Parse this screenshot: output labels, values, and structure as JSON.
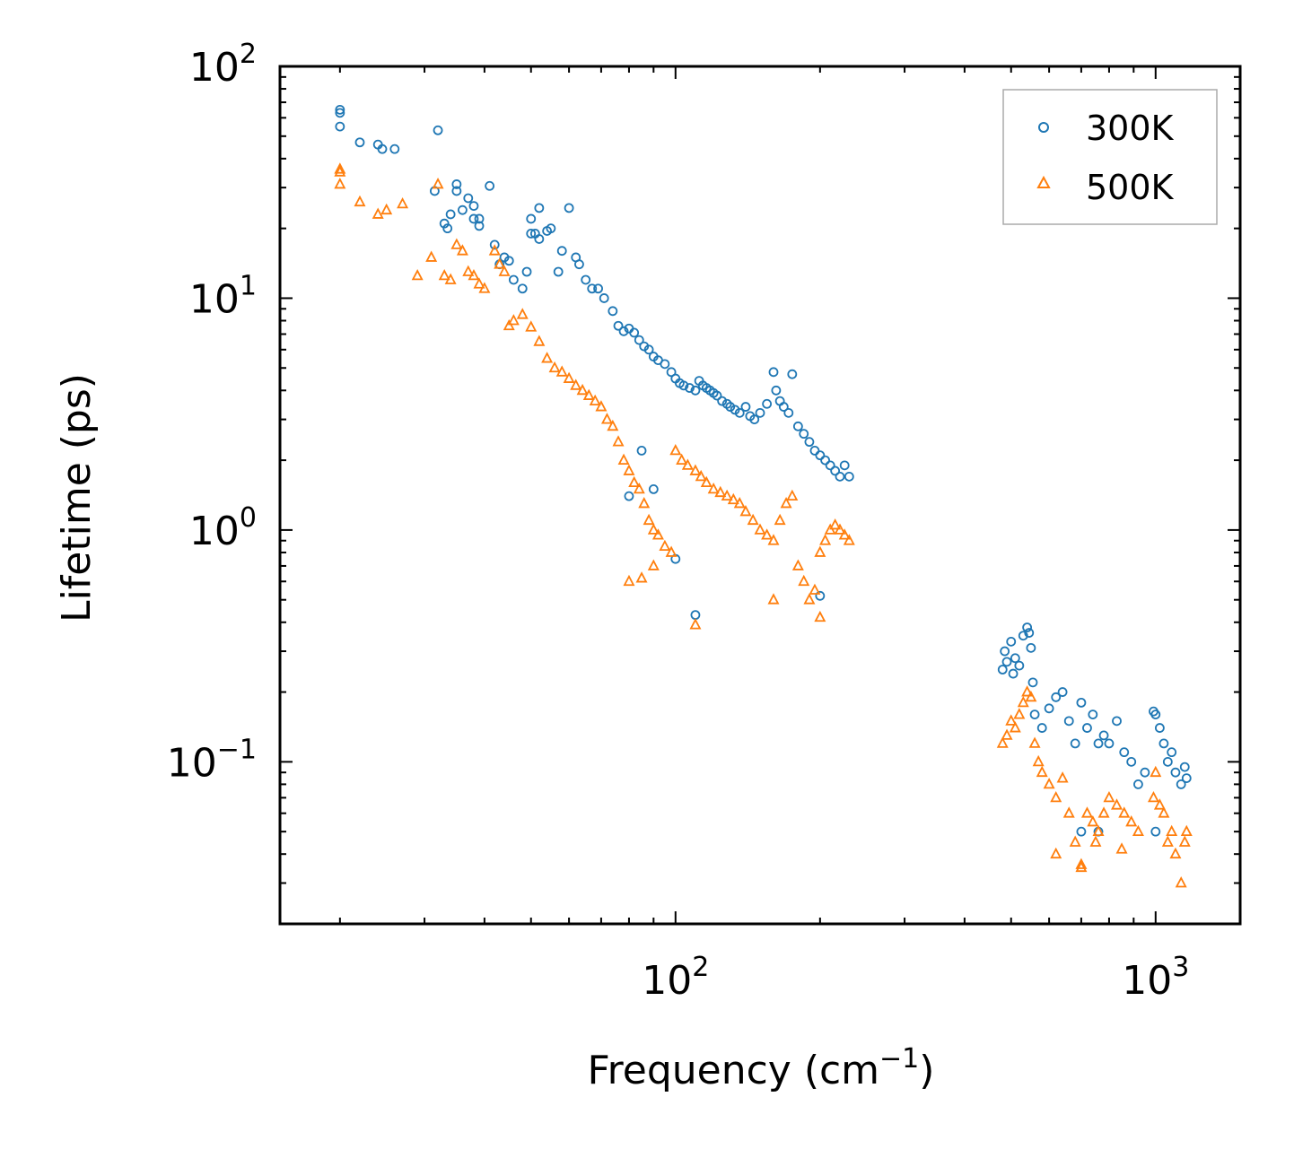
{
  "chart_data": {
    "type": "scatter",
    "xscale": "log",
    "yscale": "log",
    "xlim": [
      15,
      1500
    ],
    "ylim": [
      0.02,
      100
    ],
    "xlabel": "Frequency (cm",
    "xlabel_sup": "−1",
    "xlabel_tail": ")",
    "ylabel": "Lifetime (ps)",
    "x_ticks": [
      {
        "value": 100,
        "base": "10",
        "exp": "2"
      },
      {
        "value": 1000,
        "base": "10",
        "exp": "3"
      }
    ],
    "y_ticks": [
      {
        "value": 0.1,
        "base": "10",
        "exp": "−1"
      },
      {
        "value": 1,
        "base": "10",
        "exp": "0"
      },
      {
        "value": 10,
        "base": "10",
        "exp": "1"
      },
      {
        "value": 100,
        "base": "10",
        "exp": "2"
      }
    ],
    "legend": {
      "placement": "top-right"
    },
    "series": [
      {
        "name": "300K",
        "marker": "circle",
        "color": "#1f77b4",
        "points": [
          [
            20,
            65
          ],
          [
            20,
            63
          ],
          [
            20,
            55
          ],
          [
            22,
            47
          ],
          [
            24,
            46
          ],
          [
            24.5,
            44
          ],
          [
            26,
            44
          ],
          [
            32,
            53
          ],
          [
            31.5,
            29
          ],
          [
            33,
            21
          ],
          [
            33.5,
            20
          ],
          [
            34,
            23
          ],
          [
            35,
            31
          ],
          [
            35,
            29
          ],
          [
            36,
            24
          ],
          [
            37,
            27
          ],
          [
            38,
            25
          ],
          [
            38,
            22
          ],
          [
            39,
            22
          ],
          [
            39,
            20.5
          ],
          [
            41,
            30.5
          ],
          [
            42,
            17
          ],
          [
            43,
            14
          ],
          [
            44,
            15
          ],
          [
            45,
            14.5
          ],
          [
            46,
            12
          ],
          [
            48,
            11
          ],
          [
            49,
            13
          ],
          [
            50,
            22
          ],
          [
            50,
            19
          ],
          [
            51,
            19
          ],
          [
            52,
            18
          ],
          [
            52,
            24.5
          ],
          [
            54,
            19.5
          ],
          [
            55,
            20
          ],
          [
            57,
            13
          ],
          [
            58,
            16
          ],
          [
            60,
            24.5
          ],
          [
            62,
            15
          ],
          [
            63,
            14
          ],
          [
            65,
            12
          ],
          [
            67,
            11
          ],
          [
            69,
            11
          ],
          [
            71,
            10
          ],
          [
            74,
            8.8
          ],
          [
            76,
            7.6
          ],
          [
            78,
            7.2
          ],
          [
            80,
            7.4
          ],
          [
            82,
            7.1
          ],
          [
            84,
            6.6
          ],
          [
            86,
            6.2
          ],
          [
            88,
            6
          ],
          [
            90,
            5.6
          ],
          [
            92,
            5.4
          ],
          [
            95,
            5.2
          ],
          [
            98,
            4.8
          ],
          [
            100,
            4.5
          ],
          [
            102,
            4.3
          ],
          [
            104,
            4.2
          ],
          [
            107,
            4.1
          ],
          [
            110,
            4
          ],
          [
            112,
            4.4
          ],
          [
            114,
            4.2
          ],
          [
            116,
            4.1
          ],
          [
            118,
            4.0
          ],
          [
            120,
            3.9
          ],
          [
            122,
            3.8
          ],
          [
            125,
            3.6
          ],
          [
            128,
            3.5
          ],
          [
            130,
            3.4
          ],
          [
            133,
            3.3
          ],
          [
            136,
            3.2
          ],
          [
            140,
            3.4
          ],
          [
            143,
            3.1
          ],
          [
            146,
            3.0
          ],
          [
            150,
            3.2
          ],
          [
            155,
            3.5
          ],
          [
            160,
            4.8
          ],
          [
            162,
            4.0
          ],
          [
            165,
            3.6
          ],
          [
            168,
            3.4
          ],
          [
            172,
            3.2
          ],
          [
            175,
            4.7
          ],
          [
            180,
            2.8
          ],
          [
            185,
            2.6
          ],
          [
            190,
            2.4
          ],
          [
            195,
            2.2
          ],
          [
            200,
            2.1
          ],
          [
            205,
            2.0
          ],
          [
            210,
            1.9
          ],
          [
            215,
            1.8
          ],
          [
            220,
            1.7
          ],
          [
            225,
            1.9
          ],
          [
            230,
            1.7
          ],
          [
            100,
            0.75
          ],
          [
            110,
            0.43
          ],
          [
            200,
            0.52
          ],
          [
            80,
            1.4
          ],
          [
            90,
            1.5
          ],
          [
            85,
            2.2
          ],
          [
            480,
            0.25
          ],
          [
            485,
            0.3
          ],
          [
            490,
            0.27
          ],
          [
            500,
            0.33
          ],
          [
            505,
            0.24
          ],
          [
            510,
            0.28
          ],
          [
            520,
            0.26
          ],
          [
            530,
            0.35
          ],
          [
            540,
            0.38
          ],
          [
            545,
            0.36
          ],
          [
            550,
            0.31
          ],
          [
            555,
            0.22
          ],
          [
            560,
            0.16
          ],
          [
            580,
            0.14
          ],
          [
            600,
            0.17
          ],
          [
            620,
            0.19
          ],
          [
            640,
            0.2
          ],
          [
            660,
            0.15
          ],
          [
            680,
            0.12
          ],
          [
            700,
            0.18
          ],
          [
            720,
            0.14
          ],
          [
            740,
            0.16
          ],
          [
            760,
            0.12
          ],
          [
            780,
            0.13
          ],
          [
            800,
            0.12
          ],
          [
            830,
            0.15
          ],
          [
            860,
            0.11
          ],
          [
            890,
            0.1
          ],
          [
            920,
            0.08
          ],
          [
            950,
            0.09
          ],
          [
            990,
            0.165
          ],
          [
            1000,
            0.16
          ],
          [
            1020,
            0.14
          ],
          [
            1040,
            0.12
          ],
          [
            1060,
            0.1
          ],
          [
            1080,
            0.11
          ],
          [
            1100,
            0.09
          ],
          [
            1130,
            0.08
          ],
          [
            1150,
            0.095
          ],
          [
            1160,
            0.085
          ],
          [
            700,
            0.05
          ],
          [
            760,
            0.05
          ],
          [
            1000,
            0.05
          ]
        ]
      },
      {
        "name": "500K",
        "marker": "triangle",
        "color": "#ff7f0e",
        "points": [
          [
            20,
            36
          ],
          [
            20,
            35
          ],
          [
            20,
            31
          ],
          [
            22,
            26
          ],
          [
            24,
            23
          ],
          [
            25,
            24
          ],
          [
            27,
            25.5
          ],
          [
            29,
            12.5
          ],
          [
            31,
            15
          ],
          [
            32,
            31
          ],
          [
            33,
            12.5
          ],
          [
            34,
            12
          ],
          [
            35,
            17
          ],
          [
            36,
            16
          ],
          [
            37,
            13
          ],
          [
            38,
            12.5
          ],
          [
            39,
            11.5
          ],
          [
            40,
            11
          ],
          [
            42,
            16
          ],
          [
            43,
            14
          ],
          [
            44,
            13
          ],
          [
            45,
            7.6
          ],
          [
            46,
            8
          ],
          [
            48,
            8.5
          ],
          [
            50,
            7.5
          ],
          [
            52,
            6.5
          ],
          [
            54,
            5.5
          ],
          [
            56,
            5.0
          ],
          [
            58,
            4.8
          ],
          [
            60,
            4.5
          ],
          [
            62,
            4.2
          ],
          [
            64,
            4.0
          ],
          [
            66,
            3.8
          ],
          [
            68,
            3.6
          ],
          [
            70,
            3.4
          ],
          [
            72,
            3.0
          ],
          [
            74,
            2.8
          ],
          [
            76,
            2.4
          ],
          [
            78,
            2.0
          ],
          [
            80,
            1.8
          ],
          [
            82,
            1.6
          ],
          [
            84,
            1.5
          ],
          [
            86,
            1.3
          ],
          [
            88,
            1.1
          ],
          [
            90,
            1.0
          ],
          [
            92,
            0.95
          ],
          [
            95,
            0.85
          ],
          [
            98,
            0.8
          ],
          [
            100,
            2.2
          ],
          [
            103,
            2.0
          ],
          [
            106,
            1.9
          ],
          [
            110,
            1.8
          ],
          [
            113,
            1.7
          ],
          [
            116,
            1.6
          ],
          [
            120,
            1.5
          ],
          [
            124,
            1.45
          ],
          [
            128,
            1.4
          ],
          [
            132,
            1.35
          ],
          [
            136,
            1.3
          ],
          [
            140,
            1.2
          ],
          [
            145,
            1.1
          ],
          [
            150,
            1.0
          ],
          [
            155,
            0.95
          ],
          [
            160,
            0.9
          ],
          [
            165,
            1.1
          ],
          [
            170,
            1.3
          ],
          [
            175,
            1.4
          ],
          [
            180,
            0.7
          ],
          [
            185,
            0.6
          ],
          [
            190,
            0.5
          ],
          [
            195,
            0.55
          ],
          [
            200,
            0.8
          ],
          [
            205,
            0.9
          ],
          [
            210,
            1.0
          ],
          [
            215,
            1.05
          ],
          [
            220,
            1.0
          ],
          [
            225,
            0.95
          ],
          [
            230,
            0.9
          ],
          [
            80,
            0.6
          ],
          [
            85,
            0.62
          ],
          [
            90,
            0.7
          ],
          [
            110,
            0.39
          ],
          [
            200,
            0.42
          ],
          [
            160,
            0.5
          ],
          [
            480,
            0.12
          ],
          [
            490,
            0.13
          ],
          [
            500,
            0.15
          ],
          [
            510,
            0.14
          ],
          [
            520,
            0.16
          ],
          [
            530,
            0.18
          ],
          [
            540,
            0.2
          ],
          [
            550,
            0.19
          ],
          [
            560,
            0.12
          ],
          [
            570,
            0.1
          ],
          [
            580,
            0.09
          ],
          [
            600,
            0.08
          ],
          [
            620,
            0.07
          ],
          [
            640,
            0.085
          ],
          [
            660,
            0.06
          ],
          [
            680,
            0.045
          ],
          [
            700,
            0.035
          ],
          [
            720,
            0.06
          ],
          [
            740,
            0.055
          ],
          [
            760,
            0.05
          ],
          [
            780,
            0.06
          ],
          [
            800,
            0.07
          ],
          [
            830,
            0.065
          ],
          [
            860,
            0.06
          ],
          [
            890,
            0.055
          ],
          [
            920,
            0.05
          ],
          [
            990,
            0.07
          ],
          [
            1000,
            0.09
          ],
          [
            1020,
            0.065
          ],
          [
            1040,
            0.06
          ],
          [
            1060,
            0.045
          ],
          [
            1080,
            0.05
          ],
          [
            1100,
            0.04
          ],
          [
            1130,
            0.03
          ],
          [
            1150,
            0.045
          ],
          [
            1160,
            0.05
          ],
          [
            620,
            0.04
          ],
          [
            700,
            0.036
          ],
          [
            750,
            0.045
          ],
          [
            850,
            0.042
          ]
        ]
      }
    ]
  }
}
